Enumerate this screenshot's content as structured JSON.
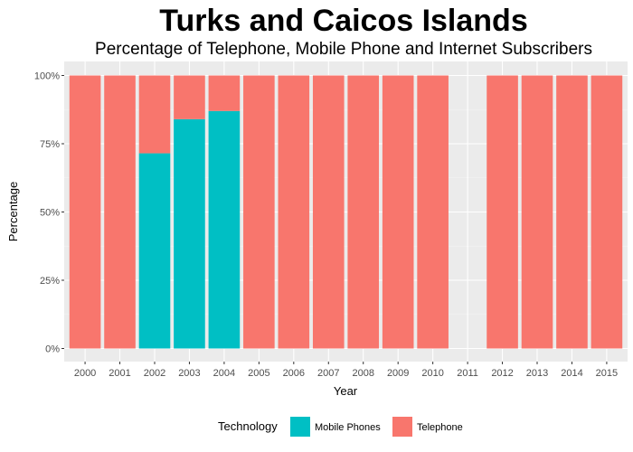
{
  "chart_data": {
    "type": "bar",
    "stacked": true,
    "title": "Turks and Caicos Islands",
    "subtitle": "Percentage of Telephone, Mobile Phone and Internet Subscribers",
    "xlabel": "Year",
    "ylabel": "Percentage",
    "ylim": [
      0,
      100
    ],
    "yticks": [
      "0%",
      "25%",
      "50%",
      "75%",
      "100%"
    ],
    "ytick_values": [
      0,
      25,
      50,
      75,
      100
    ],
    "categories": [
      "2000",
      "2001",
      "2002",
      "2003",
      "2004",
      "2005",
      "2006",
      "2007",
      "2008",
      "2009",
      "2010",
      "2011",
      "2012",
      "2013",
      "2014",
      "2015"
    ],
    "series": [
      {
        "name": "Mobile Phones",
        "color": "#00BFC4",
        "values": [
          0,
          0,
          71.5,
          84,
          87,
          0,
          0,
          0,
          0,
          0,
          0,
          null,
          0,
          0,
          0,
          0
        ]
      },
      {
        "name": "Telephone",
        "color": "#F8766D",
        "values": [
          100,
          100,
          28.5,
          16,
          13,
          100,
          100,
          100,
          100,
          100,
          100,
          null,
          100,
          100,
          100,
          100
        ]
      }
    ],
    "legend": {
      "title": "Technology",
      "position": "bottom",
      "entries": [
        "Mobile Phones",
        "Telephone"
      ]
    },
    "grid": true
  }
}
